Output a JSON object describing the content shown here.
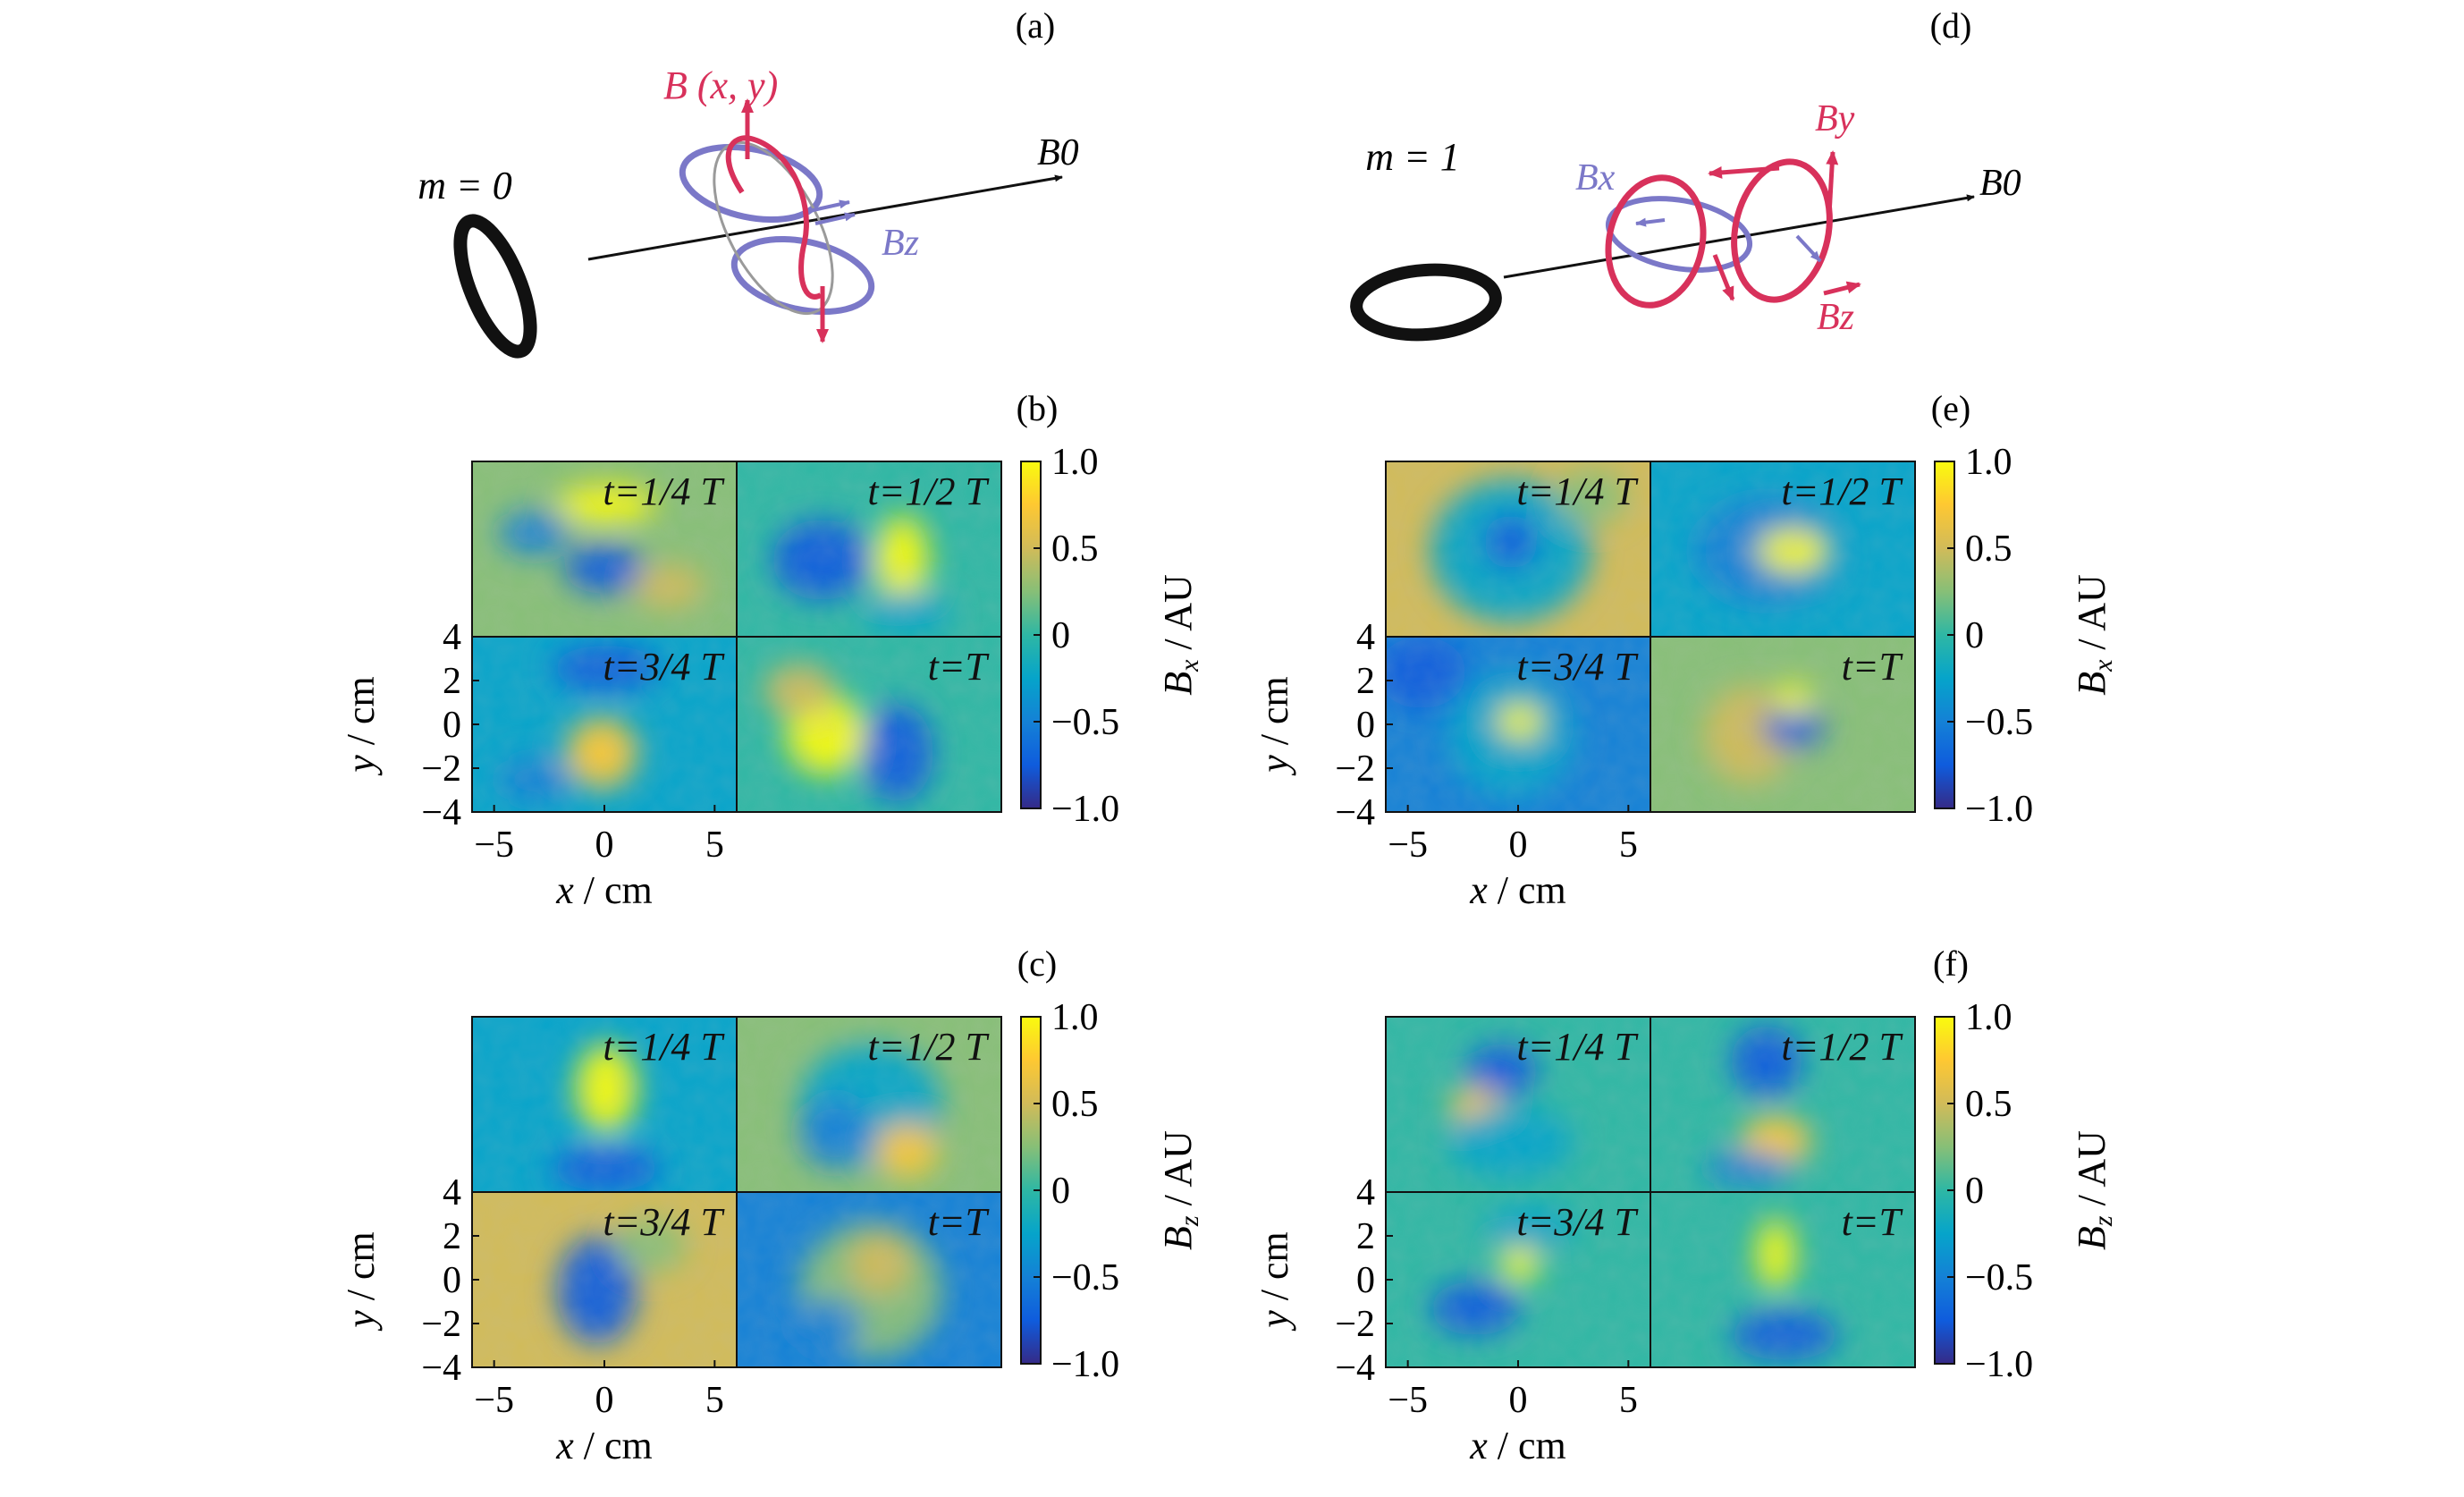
{
  "panels": {
    "a": {
      "label": "(a)",
      "mode_label": "m = 0",
      "field_label_B": "B (x, y)",
      "field_label_Bz": "Bz",
      "axis_label": "B0"
    },
    "b": {
      "label": "(b)",
      "colorbar_label": "Bx / AU"
    },
    "c": {
      "label": "(c)",
      "colorbar_label": "Bz / AU"
    },
    "d": {
      "label": "(d)",
      "mode_label": "m = 1",
      "field_label_Bx": "Bx",
      "field_label_By": "By",
      "field_label_Bz": "Bz",
      "axis_label": "B0"
    },
    "e": {
      "label": "(e)",
      "colorbar_label": "Bx / AU"
    },
    "f": {
      "label": "(f)",
      "colorbar_label": "Bz / AU"
    }
  },
  "subplot_titles": [
    "t=1/4 T",
    "t=1/2 T",
    "t=3/4 T",
    "t=T"
  ],
  "axes": {
    "xlabel": "x / cm",
    "ylabel": "y / cm",
    "x_ticks": [
      "−5",
      "0",
      "5"
    ],
    "y_ticks": [
      "4",
      "2",
      "0",
      "−2",
      "−4"
    ],
    "colorbar_ticks": [
      "1.0",
      "0.5",
      "0",
      "−0.5",
      "−1.0"
    ]
  },
  "chart_data": [
    {
      "type": "heatmap",
      "panel": "b",
      "quantity": "Bx / AU",
      "colormap": "parula",
      "clim": [
        -1.0,
        1.0
      ],
      "x_ticks": [
        -5,
        0,
        5
      ],
      "y_ticks": [
        -4,
        -2,
        0,
        2,
        4
      ],
      "subplots": [
        "t=1/4 T",
        "t=1/2 T",
        "t=3/4 T",
        "t=T"
      ]
    },
    {
      "type": "heatmap",
      "panel": "c",
      "quantity": "Bz / AU",
      "colormap": "parula",
      "clim": [
        -1.0,
        1.0
      ],
      "x_ticks": [
        -5,
        0,
        5
      ],
      "y_ticks": [
        -4,
        -2,
        0,
        2,
        4
      ],
      "subplots": [
        "t=1/4 T",
        "t=1/2 T",
        "t=3/4 T",
        "t=T"
      ]
    },
    {
      "type": "heatmap",
      "panel": "e",
      "quantity": "Bx / AU",
      "colormap": "parula",
      "clim": [
        -1.0,
        1.0
      ],
      "x_ticks": [
        -5,
        0,
        5
      ],
      "y_ticks": [
        -4,
        -2,
        0,
        2,
        4
      ],
      "subplots": [
        "t=1/4 T",
        "t=1/2 T",
        "t=3/4 T",
        "t=T"
      ]
    },
    {
      "type": "heatmap",
      "panel": "f",
      "quantity": "Bz / AU",
      "colormap": "parula",
      "clim": [
        -1.0,
        1.0
      ],
      "x_ticks": [
        -5,
        0,
        5
      ],
      "y_ticks": [
        -4,
        -2,
        0,
        2,
        4
      ],
      "subplots": [
        "t=1/4 T",
        "t=1/2 T",
        "t=3/4 T",
        "t=T"
      ]
    }
  ],
  "colors": {
    "field_red": "#d8315b",
    "field_blue": "#7b78c8",
    "ink": "#111111",
    "parula": [
      "#352a87",
      "#0f5cdd",
      "#1481d6",
      "#06a4ca",
      "#2eb7a4",
      "#87bf77",
      "#d1bb59",
      "#fec832",
      "#f9fb0e"
    ]
  }
}
